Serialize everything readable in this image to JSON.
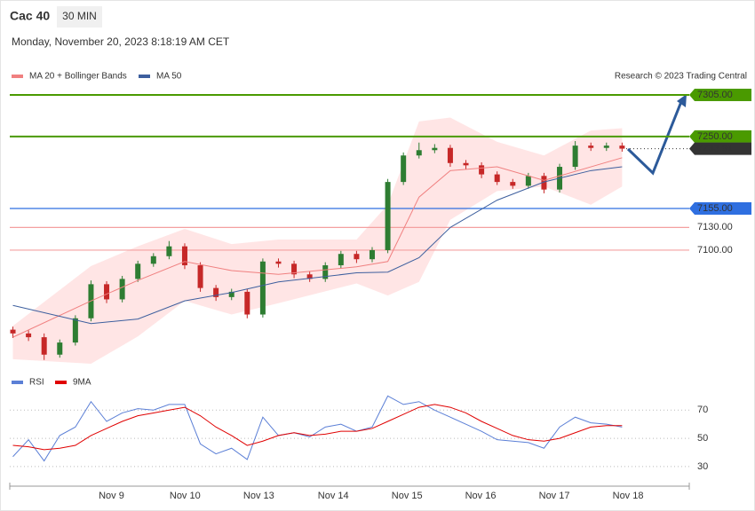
{
  "header": {
    "symbol": "Cac 40",
    "interval": "30 MIN",
    "datetime": "Monday, November 20, 2023 8:18:19 AM CET"
  },
  "chart_data": [
    {
      "type": "candlestick",
      "credit": "Research © 2023 Trading Central",
      "open": [
        6995,
        6990,
        6985,
        6962,
        6978,
        7010,
        7055,
        7035,
        7062,
        7082,
        7092,
        7105,
        7080,
        7050,
        7038,
        7045,
        7015,
        7085,
        7082,
        7068,
        7062,
        7080,
        7095,
        7088,
        7100,
        7190,
        7225,
        7232,
        7235,
        7215,
        7212,
        7200,
        7190,
        7185,
        7198,
        7180,
        7210,
        7238,
        7235,
        7238
      ],
      "high": [
        6999,
        6994,
        6990,
        6982,
        7014,
        7060,
        7059,
        7066,
        7086,
        7096,
        7112,
        7109,
        7084,
        7054,
        7049,
        7049,
        7089,
        7089,
        7086,
        7072,
        7084,
        7099,
        7099,
        7104,
        7194,
        7229,
        7242,
        7240,
        7239,
        7219,
        7216,
        7204,
        7194,
        7202,
        7202,
        7214,
        7244,
        7242,
        7242,
        7242
      ],
      "low": [
        6984,
        6980,
        6955,
        6958,
        6974,
        7006,
        7030,
        7031,
        7058,
        7078,
        7088,
        7075,
        7045,
        7033,
        7034,
        7010,
        7011,
        7077,
        7063,
        7058,
        7058,
        7076,
        7083,
        7084,
        7096,
        7186,
        7221,
        7228,
        7210,
        7207,
        7195,
        7186,
        7181,
        7181,
        7175,
        7176,
        7206,
        7231,
        7231,
        7230
      ],
      "close": [
        6990,
        6985,
        6962,
        6978,
        7010,
        7055,
        7035,
        7062,
        7082,
        7092,
        7105,
        7080,
        7050,
        7038,
        7045,
        7015,
        7085,
        7082,
        7068,
        7062,
        7080,
        7095,
        7088,
        7100,
        7190,
        7225,
        7232,
        7235,
        7215,
        7212,
        7200,
        7190,
        7185,
        7198,
        7180,
        7210,
        7238,
        7235,
        7238,
        7234
      ],
      "up_color": "#2e7d32",
      "down_color": "#c62828",
      "xlim": [
        -0.2,
        43.3
      ],
      "ylim": [
        6950,
        7319
      ],
      "overlays": {
        "x": [
          0,
          5,
          8,
          11,
          14,
          17,
          22,
          24,
          26,
          28,
          31,
          34,
          37,
          39
        ],
        "series": [
          {
            "name": "MA 20 + Bollinger Bands",
            "color": "#f08080",
            "band_color": "#ffdede",
            "values": [
              6985,
              7033,
              7060,
              7085,
              7073,
              7068,
              7078,
              7085,
              7170,
              7205,
              7210,
              7192,
              7210,
              7222
            ],
            "upper": [
              7000,
              7079,
              7105,
              7128,
              7108,
              7114,
              7114,
              7160,
              7270,
              7275,
              7243,
              7225,
              7258,
              7261
            ],
            "lower": [
              6956,
              6950,
              6986,
              7033,
              7015,
              7030,
              7056,
              7040,
              7058,
              7140,
              7178,
              7184,
              7160,
              7184
            ]
          },
          {
            "name": "MA 50",
            "color": "#3d5f9e",
            "values": [
              7027,
              7003,
              7009,
              7033,
              7044,
              7058,
              7070,
              7071,
              7090,
              7130,
              7166,
              7190,
              7205,
              7210
            ]
          }
        ]
      },
      "levels": [
        {
          "value": {
            "value": 7305,
            "label": "7305.00"
          },
          "color": "#4a9a00",
          "style": "tag"
        },
        {
          "value": {
            "value": 7250,
            "label": "7250.00"
          },
          "color": "#4a9a00",
          "style": "tag"
        },
        {
          "value": 7233.91,
          "color": "#333333",
          "style": "tag",
          "dotted": true
        },
        {
          "value": {
            "value": 7155,
            "label": "7155.00"
          },
          "color": "#2f6fe0",
          "style": "tag"
        },
        {
          "value": {
            "value": 7130,
            "label": "7130.00"
          },
          "color": "#f4a0a0",
          "text_color": "#d32f2f",
          "style": "text"
        },
        {
          "value": {
            "value": 7100,
            "label": "7100.00"
          },
          "color": "#f4a0a0",
          "text_color": "#d32f2f",
          "style": "text"
        }
      ]
    },
    {
      "type": "line",
      "series": [
        {
          "name": "RSI",
          "color": "#5b7fd6",
          "values": [
            37,
            49,
            34,
            52,
            58,
            76,
            62,
            68,
            71,
            70,
            74,
            74,
            46,
            39,
            43,
            35,
            65,
            52,
            54,
            51,
            58,
            60,
            55,
            58,
            80,
            74,
            76,
            70,
            65,
            60,
            55,
            49,
            48,
            47,
            43,
            58,
            65,
            61,
            60,
            58
          ]
        },
        {
          "name": "9MA",
          "color": "#e00000",
          "values": [
            45,
            44,
            42,
            43,
            45,
            52,
            57,
            62,
            66,
            68,
            70,
            72,
            66,
            58,
            52,
            45,
            48,
            52,
            54,
            52,
            53,
            55,
            55,
            57,
            62,
            67,
            72,
            74,
            72,
            68,
            62,
            57,
            52,
            49,
            48,
            50,
            54,
            58,
            59,
            59
          ]
        }
      ],
      "xlim": [
        -0.2,
        43.3
      ],
      "ylim": [
        18,
        84
      ],
      "yticks": [
        30,
        50,
        70
      ],
      "xticks": [
        {
          "value": 6.31,
          "label": "Nov 9"
        },
        {
          "value": 11.02,
          "label": "Nov 10"
        },
        {
          "value": 15.74,
          "label": "Nov 13"
        },
        {
          "value": 20.51,
          "label": "Nov 14"
        },
        {
          "value": 25.23,
          "label": "Nov 15"
        },
        {
          "value": 29.94,
          "label": "Nov 16"
        },
        {
          "value": 34.66,
          "label": "Nov 17"
        },
        {
          "value": 39.38,
          "label": "Nov 18"
        }
      ]
    }
  ]
}
